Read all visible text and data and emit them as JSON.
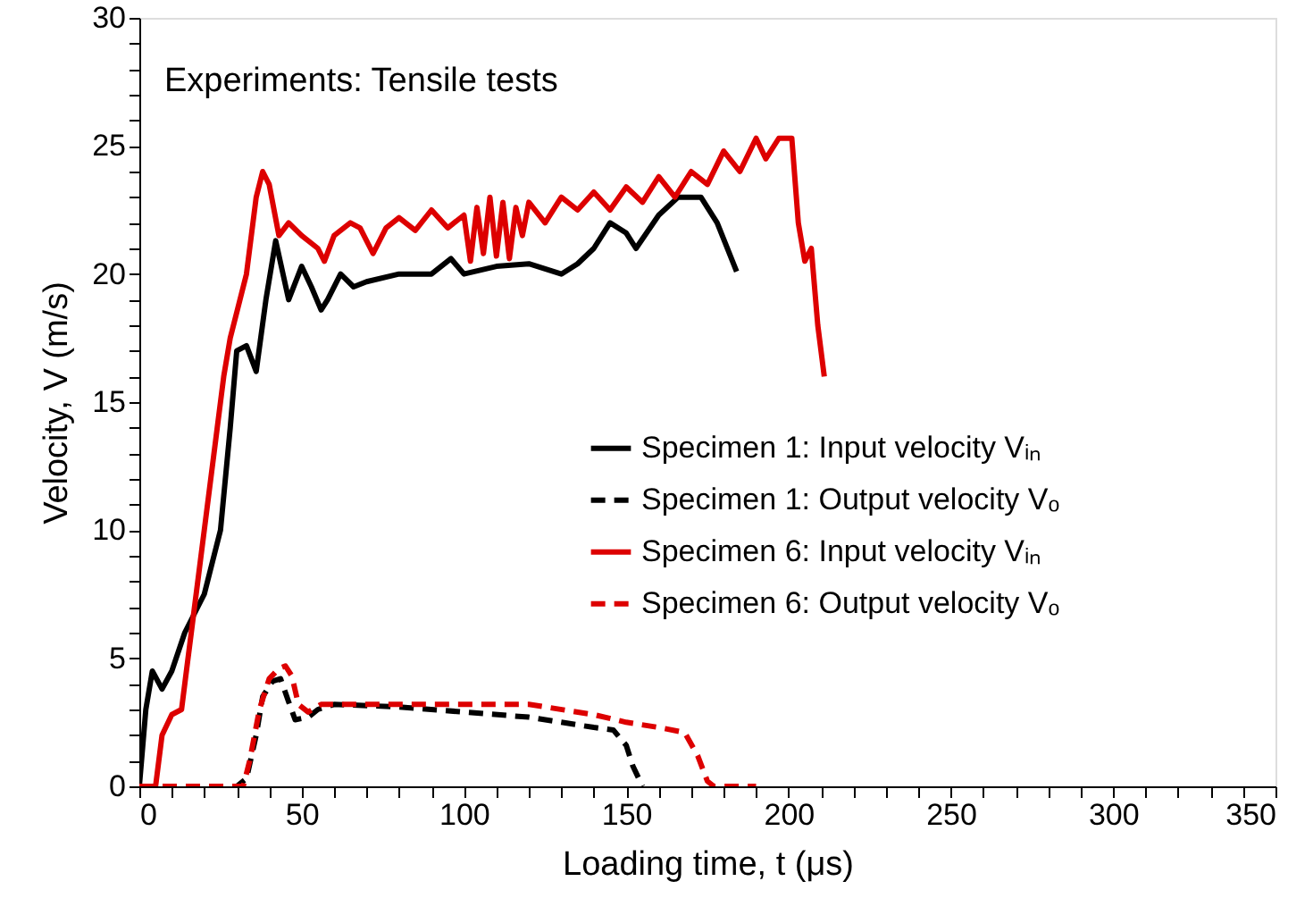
{
  "chart_data": {
    "type": "line",
    "xlabel": "Loading time, t (μs)",
    "ylabel": "Velocity, V (m/s)",
    "annotations": [
      "Experiments: Tensile tests"
    ],
    "xlim": [
      0,
      350
    ],
    "ylim": [
      0,
      30
    ],
    "xticks": [
      0,
      {
        "value": 10,
        "label": null
      },
      {
        "value": 20,
        "label": null
      },
      {
        "value": 30,
        "label": null
      },
      {
        "value": 40,
        "label": null
      },
      50,
      {
        "value": 60,
        "label": null
      },
      {
        "value": 70,
        "label": null
      },
      {
        "value": 80,
        "label": null
      },
      {
        "value": 90,
        "label": null
      },
      100,
      {
        "value": 110,
        "label": null
      },
      {
        "value": 120,
        "label": null
      },
      {
        "value": 130,
        "label": null
      },
      {
        "value": 140,
        "label": null
      },
      150,
      {
        "value": 160,
        "label": null
      },
      {
        "value": 170,
        "label": null
      },
      {
        "value": 180,
        "label": null
      },
      {
        "value": 190,
        "label": null
      },
      200,
      {
        "value": 210,
        "label": null
      },
      {
        "value": 220,
        "label": null
      },
      {
        "value": 230,
        "label": null
      },
      {
        "value": 240,
        "label": null
      },
      250,
      {
        "value": 260,
        "label": null
      },
      {
        "value": 270,
        "label": null
      },
      {
        "value": 280,
        "label": null
      },
      {
        "value": 290,
        "label": null
      },
      300,
      {
        "value": 310,
        "label": null
      },
      {
        "value": 320,
        "label": null
      },
      {
        "value": 330,
        "label": null
      },
      {
        "value": 340,
        "label": null
      },
      350
    ],
    "yticks": [
      0,
      {
        "value": 1,
        "label": null
      },
      {
        "value": 2,
        "label": null
      },
      {
        "value": 3,
        "label": null
      },
      {
        "value": 4,
        "label": null
      },
      5,
      {
        "value": 6,
        "label": null
      },
      {
        "value": 7,
        "label": null
      },
      {
        "value": 8,
        "label": null
      },
      {
        "value": 9,
        "label": null
      },
      10,
      {
        "value": 11,
        "label": null
      },
      {
        "value": 12,
        "label": null
      },
      {
        "value": 13,
        "label": null
      },
      {
        "value": 14,
        "label": null
      },
      15,
      {
        "value": 16,
        "label": null
      },
      {
        "value": 17,
        "label": null
      },
      {
        "value": 18,
        "label": null
      },
      {
        "value": 19,
        "label": null
      },
      20,
      {
        "value": 21,
        "label": null
      },
      {
        "value": 22,
        "label": null
      },
      {
        "value": 23,
        "label": null
      },
      {
        "value": 24,
        "label": null
      },
      25,
      {
        "value": 26,
        "label": null
      },
      {
        "value": 27,
        "label": null
      },
      {
        "value": 28,
        "label": null
      },
      {
        "value": 29,
        "label": null
      },
      30
    ],
    "grid": false,
    "legend": "right",
    "marker": "none",
    "series": [
      {
        "name": "Specimen 1: Input velocity Vᵢₙ",
        "color": "#000000",
        "line_style": "solid",
        "x": [
          0,
          2,
          4,
          7,
          10,
          14,
          20,
          25,
          28,
          30,
          33,
          36,
          39,
          42,
          46,
          50,
          53,
          56,
          58,
          62,
          66,
          70,
          80,
          90,
          96,
          100,
          110,
          120,
          130,
          135,
          140,
          145,
          150,
          153,
          160,
          166,
          173,
          178,
          184
        ],
        "values": [
          0,
          3,
          4.5,
          3.8,
          4.5,
          6,
          7.5,
          10,
          14,
          17,
          17.2,
          16.2,
          19,
          21.3,
          19,
          20.3,
          19.5,
          18.6,
          19,
          20,
          19.5,
          19.7,
          20,
          20,
          20.6,
          20,
          20.3,
          20.4,
          20,
          20.4,
          21,
          22,
          21.6,
          21,
          22.3,
          23,
          23,
          22,
          20.1
        ]
      },
      {
        "name": "Specimen 1: Output velocity Vₒ",
        "color": "#000000",
        "line_style": "dashed",
        "x": [
          0,
          30,
          33,
          36,
          38,
          41,
          43.5,
          46,
          48,
          52,
          55,
          60,
          80,
          100,
          120,
          130,
          140,
          146,
          150,
          152,
          155
        ],
        "values": [
          0,
          0,
          0.3,
          2,
          3.5,
          4.1,
          4.2,
          3.3,
          2.6,
          2.7,
          3,
          3.2,
          3.1,
          2.9,
          2.7,
          2.5,
          2.3,
          2.2,
          1.6,
          0.8,
          0
        ]
      },
      {
        "name": "Specimen 6: Input velocity Vᵢₙ",
        "color": "#dd0000",
        "line_style": "solid",
        "x": [
          0,
          5,
          7,
          10,
          13,
          16,
          20,
          24,
          26,
          28,
          30,
          33,
          36,
          38,
          40,
          43,
          46,
          50,
          55,
          57,
          60,
          65,
          68,
          72,
          76,
          80,
          85,
          90,
          95,
          100,
          102,
          104,
          106,
          108,
          110,
          112,
          114,
          116,
          118,
          120,
          125,
          130,
          135,
          140,
          145,
          150,
          155,
          160,
          165,
          170,
          175,
          180,
          185,
          190,
          193,
          197,
          201,
          203,
          205,
          207,
          209,
          211
        ],
        "values": [
          0,
          0,
          2,
          2.8,
          3,
          6,
          10,
          14,
          16,
          17.5,
          18.5,
          20,
          23,
          24,
          23.5,
          21.5,
          22,
          21.5,
          21,
          20.5,
          21.5,
          22,
          21.8,
          20.8,
          21.8,
          22.2,
          21.7,
          22.5,
          21.8,
          22.3,
          20.5,
          22.6,
          20.8,
          23,
          20.7,
          22.8,
          20.6,
          22.6,
          21.5,
          22.8,
          22,
          23,
          22.5,
          23.2,
          22.5,
          23.4,
          22.8,
          23.8,
          23,
          24,
          23.5,
          24.8,
          24,
          25.3,
          24.5,
          25.3,
          25.3,
          22,
          20.5,
          21,
          18,
          16
        ]
      },
      {
        "name": "Specimen 6: Output velocity Vₒ",
        "color": "#dd0000",
        "line_style": "dashed",
        "x": [
          0,
          32,
          34,
          37,
          40,
          43,
          45,
          47,
          49,
          52,
          56,
          70,
          100,
          120,
          140,
          150,
          160,
          168,
          172,
          175,
          177,
          190
        ],
        "values": [
          0,
          0,
          1,
          3,
          4.2,
          4.6,
          4.7,
          4.3,
          3.2,
          2.9,
          3.2,
          3.2,
          3.2,
          3.2,
          2.8,
          2.5,
          2.3,
          2.1,
          1.2,
          0.2,
          0,
          0
        ]
      }
    ]
  }
}
